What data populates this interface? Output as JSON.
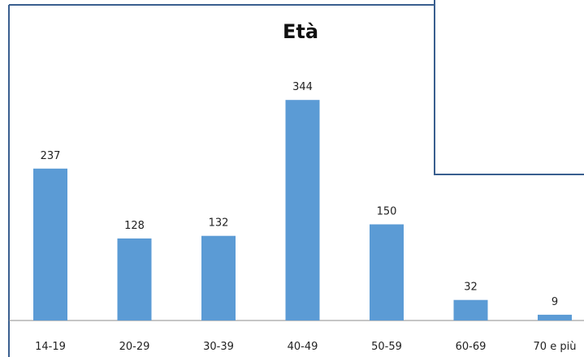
{
  "chart_data": {
    "type": "bar",
    "title": "Età",
    "xlabel": "",
    "ylabel": "",
    "categories": [
      "14-19",
      "20-29",
      "30-39",
      "40-49",
      "50-59",
      "60-69",
      "70 e più"
    ],
    "values": [
      237,
      128,
      132,
      344,
      150,
      32,
      9
    ],
    "data_labels": [
      "237",
      "128",
      "132",
      "344",
      "150",
      "32",
      "9"
    ],
    "ylim": [
      0,
      400
    ],
    "grid": false,
    "legend": "none",
    "colors": {
      "bar": "#5b9bd5",
      "frame": "#3a5f8f",
      "axis": "#8c8c8c",
      "text": "#222222"
    }
  }
}
